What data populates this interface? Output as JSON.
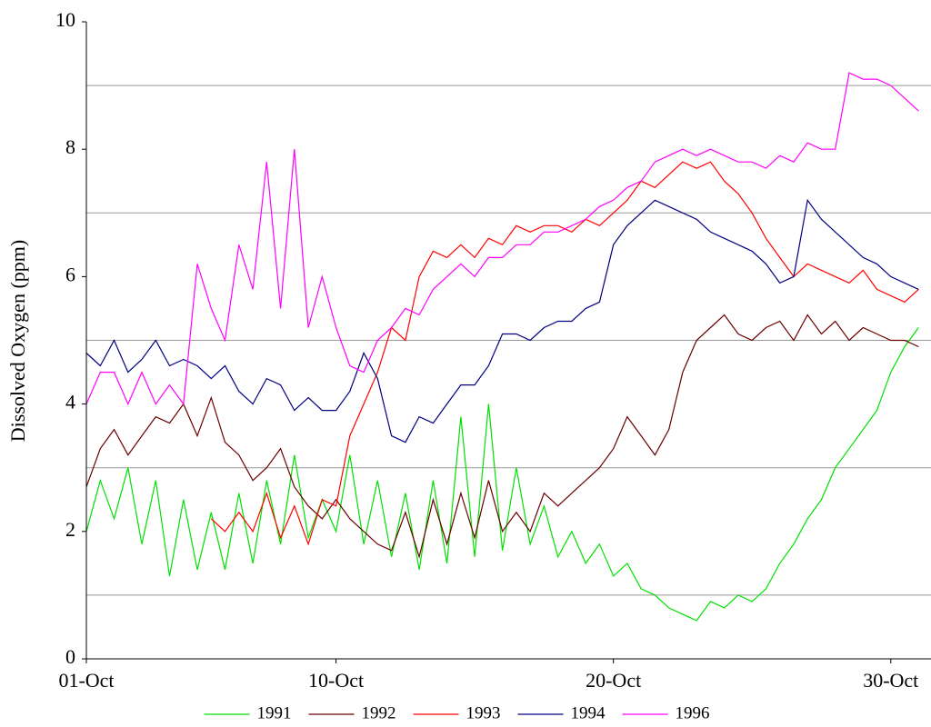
{
  "chart_data": {
    "type": "line",
    "y_label": "Dissolved Oxygen (ppm)",
    "x": [
      1,
      1.5,
      2,
      2.5,
      3,
      3.5,
      4,
      4.5,
      5,
      5.5,
      6,
      6.5,
      7,
      7.5,
      8,
      8.5,
      9,
      9.5,
      10,
      10.5,
      11,
      11.5,
      12,
      12.5,
      13,
      13.5,
      14,
      14.5,
      15,
      15.5,
      16,
      16.5,
      17,
      17.5,
      18,
      18.5,
      19,
      19.5,
      20,
      20.5,
      21,
      21.5,
      22,
      22.5,
      23,
      23.5,
      24,
      24.5,
      25,
      25.5,
      26,
      26.5,
      27,
      27.5,
      28,
      28.5,
      29,
      29.5,
      30,
      30.5,
      31
    ],
    "xlim": [
      1,
      31.45
    ],
    "xticks": [
      {
        "value": 1,
        "label": "01-Oct"
      },
      {
        "value": 10,
        "label": "10-Oct"
      },
      {
        "value": 20,
        "label": "20-Oct"
      },
      {
        "value": 30,
        "label": "30-Oct"
      }
    ],
    "ylim": [
      0,
      10
    ],
    "yticks": [
      0,
      2,
      4,
      6,
      8,
      10
    ],
    "ygrid": [
      1,
      3,
      5,
      7,
      9
    ],
    "series": [
      {
        "name": "1991",
        "color": "#00e000",
        "values": [
          2.0,
          2.8,
          2.2,
          3.0,
          1.8,
          2.8,
          1.3,
          2.5,
          1.4,
          2.3,
          1.4,
          2.6,
          1.5,
          2.8,
          1.8,
          3.2,
          1.9,
          2.5,
          2.0,
          3.2,
          1.8,
          2.8,
          1.6,
          2.6,
          1.4,
          2.8,
          1.5,
          3.8,
          1.6,
          4.0,
          1.7,
          3.0,
          1.8,
          2.4,
          1.6,
          2.0,
          1.5,
          1.8,
          1.3,
          1.5,
          1.1,
          1.0,
          0.8,
          0.7,
          0.6,
          0.9,
          0.8,
          1.0,
          0.9,
          1.1,
          1.5,
          1.8,
          2.2,
          2.5,
          3.0,
          3.3,
          3.6,
          3.9,
          4.5,
          4.9,
          5.2
        ]
      },
      {
        "name": "1992",
        "color": "#6b0000",
        "values": [
          2.7,
          3.3,
          3.6,
          3.2,
          3.5,
          3.8,
          3.7,
          4.0,
          3.5,
          4.1,
          3.4,
          3.2,
          2.8,
          3.0,
          3.3,
          2.7,
          2.4,
          2.2,
          2.5,
          2.2,
          2.0,
          1.8,
          1.7,
          2.3,
          1.6,
          2.5,
          1.8,
          2.6,
          1.9,
          2.8,
          2.0,
          2.3,
          2.0,
          2.6,
          2.4,
          2.6,
          2.8,
          3.0,
          3.3,
          3.8,
          3.5,
          3.2,
          3.6,
          4.5,
          5.0,
          5.2,
          5.4,
          5.1,
          5.0,
          5.2,
          5.3,
          5.0,
          5.4,
          5.1,
          5.3,
          5.0,
          5.2,
          5.1,
          5.0,
          5.0,
          4.9
        ]
      },
      {
        "name": "1993",
        "color": "#ff0000",
        "values": [
          null,
          null,
          null,
          null,
          null,
          null,
          null,
          null,
          null,
          2.2,
          2.0,
          2.3,
          2.0,
          2.6,
          1.9,
          2.4,
          1.8,
          2.5,
          2.4,
          3.5,
          4.0,
          4.5,
          5.2,
          5.0,
          6.0,
          6.4,
          6.3,
          6.5,
          6.3,
          6.6,
          6.5,
          6.8,
          6.7,
          6.8,
          6.8,
          6.7,
          6.9,
          6.8,
          7.0,
          7.2,
          7.5,
          7.4,
          7.6,
          7.8,
          7.7,
          7.8,
          7.5,
          7.3,
          7.0,
          6.6,
          6.3,
          6.0,
          6.2,
          6.1,
          6.0,
          5.9,
          6.1,
          5.8,
          5.7,
          5.6,
          5.8
        ]
      },
      {
        "name": "1994",
        "color": "#000080",
        "values": [
          4.8,
          4.6,
          5.0,
          4.5,
          4.7,
          5.0,
          4.6,
          4.7,
          4.6,
          4.4,
          4.6,
          4.2,
          4.0,
          4.4,
          4.3,
          3.9,
          4.1,
          3.9,
          3.9,
          4.2,
          4.8,
          4.4,
          3.5,
          3.4,
          3.8,
          3.7,
          4.0,
          4.3,
          4.3,
          4.6,
          5.1,
          5.1,
          5.0,
          5.2,
          5.3,
          5.3,
          5.5,
          5.6,
          6.5,
          6.8,
          7.0,
          7.2,
          7.1,
          7.0,
          6.9,
          6.7,
          6.6,
          6.5,
          6.4,
          6.2,
          5.9,
          6.0,
          7.2,
          6.9,
          6.7,
          6.5,
          6.3,
          6.2,
          6.0,
          5.9,
          5.8
        ]
      },
      {
        "name": "1996",
        "color": "#ff00ff",
        "values": [
          4.0,
          4.5,
          4.5,
          4.0,
          4.5,
          4.0,
          4.3,
          4.0,
          6.2,
          5.5,
          5.0,
          6.5,
          5.8,
          7.8,
          5.5,
          8.0,
          5.2,
          6.0,
          5.2,
          4.6,
          4.5,
          5.0,
          5.2,
          5.5,
          5.4,
          5.8,
          6.0,
          6.2,
          6.0,
          6.3,
          6.3,
          6.5,
          6.5,
          6.7,
          6.7,
          6.8,
          6.9,
          7.1,
          7.2,
          7.4,
          7.5,
          7.8,
          7.9,
          8.0,
          7.9,
          8.0,
          7.9,
          7.8,
          7.8,
          7.7,
          7.9,
          7.8,
          8.1,
          8.0,
          8.0,
          9.2,
          9.1,
          9.1,
          9.0,
          8.8,
          8.6
        ]
      }
    ]
  }
}
